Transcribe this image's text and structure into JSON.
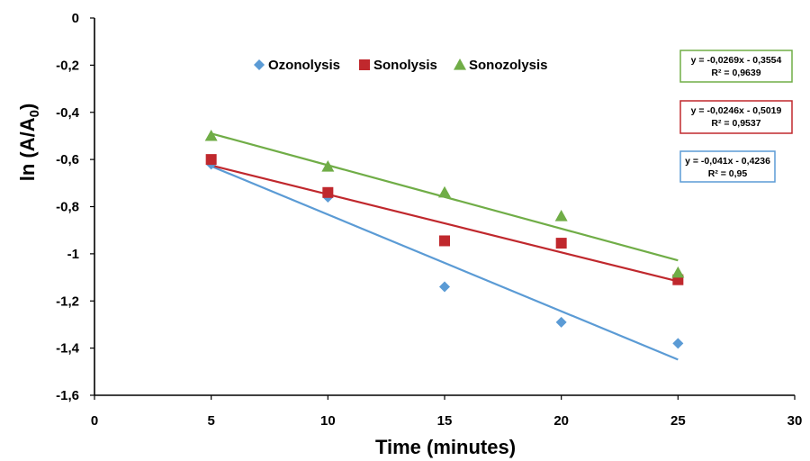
{
  "chart_data": {
    "type": "scatter",
    "xlabel": "Time (minutes)",
    "ylabel": "ln (A/A",
    "ylabel_sub": "0",
    "ylabel_close": ")",
    "xlim": [
      0,
      30
    ],
    "ylim": [
      -1.6,
      0
    ],
    "x_ticks": [
      0,
      5,
      10,
      15,
      20,
      25,
      30
    ],
    "x_tick_labels": [
      "0",
      "5",
      "10",
      "15",
      "20",
      "25",
      "30"
    ],
    "y_ticks": [
      0,
      -0.2,
      -0.4,
      -0.6,
      -0.8,
      -1,
      -1.2,
      -1.4,
      -1.6
    ],
    "y_tick_labels": [
      "0",
      "-0,2",
      "-0,4",
      "-0,6",
      "-0,8",
      "-1",
      "-1,2",
      "-1,4",
      "-1,6"
    ],
    "grid": false,
    "legend_position": "top",
    "series": [
      {
        "name": "Ozonolysis",
        "marker": "diamond",
        "color": "#5B9BD5",
        "x": [
          5,
          10,
          15,
          20,
          25
        ],
        "y": [
          -0.62,
          -0.76,
          -1.14,
          -1.29,
          -1.38
        ],
        "trendline": {
          "slope": -0.041,
          "intercept": -0.4236,
          "x_range": [
            5,
            25
          ]
        },
        "equation": "y = -0,041x - 0,4236",
        "r2": "R² = 0,95"
      },
      {
        "name": "Sonolysis",
        "marker": "square",
        "color": "#C0282D",
        "x": [
          5,
          10,
          15,
          20,
          25
        ],
        "y": [
          -0.6,
          -0.74,
          -0.945,
          -0.955,
          -1.11
        ],
        "trendline": {
          "slope": -0.0246,
          "intercept": -0.5019,
          "x_range": [
            5,
            25
          ]
        },
        "equation": "y = -0,0246x - 0,5019",
        "r2": "R² = 0,9537"
      },
      {
        "name": "Sonozolysis",
        "marker": "triangle",
        "color": "#70AD47",
        "x": [
          5,
          10,
          15,
          20,
          25
        ],
        "y": [
          -0.5,
          -0.63,
          -0.74,
          -0.84,
          -1.08
        ],
        "trendline": {
          "slope": -0.0269,
          "intercept": -0.3554,
          "x_range": [
            5,
            25
          ]
        },
        "equation": "y = -0,0269x - 0,3554",
        "r2": "R² = 0,9639"
      }
    ]
  }
}
